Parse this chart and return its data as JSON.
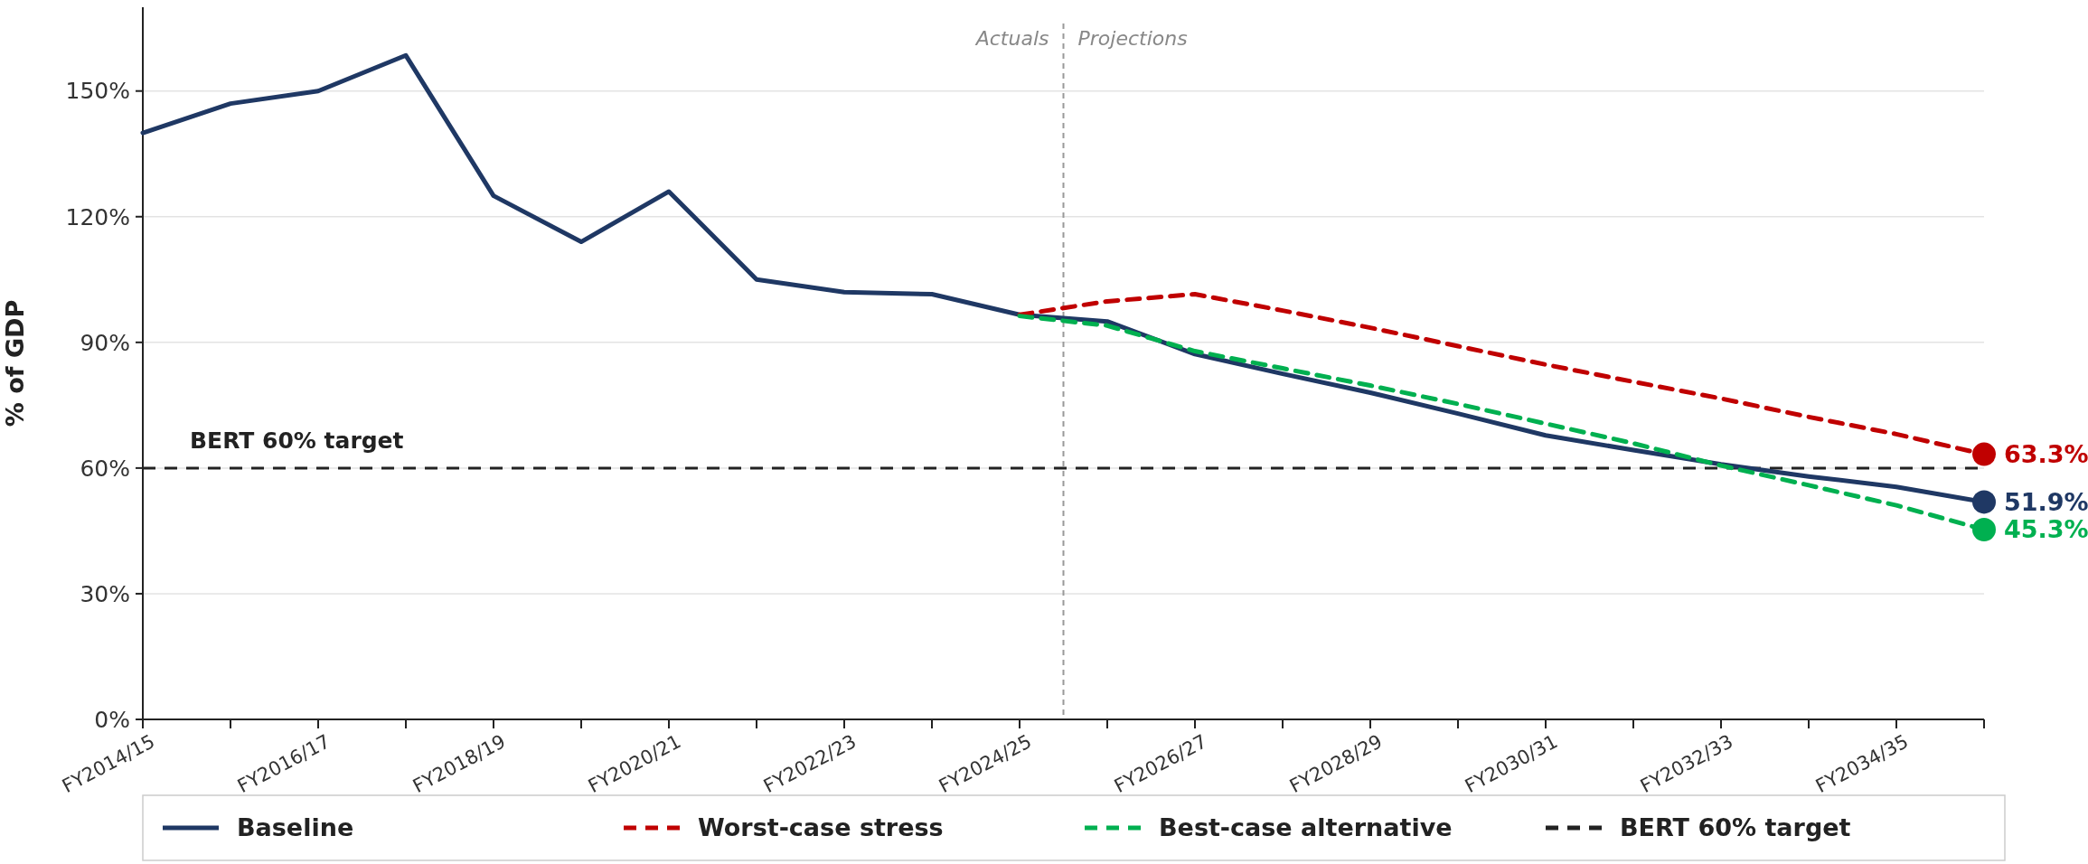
{
  "chart_data": {
    "type": "line",
    "ylabel": "% of GDP",
    "categories": [
      "FY2014/15",
      null,
      "FY2016/17",
      null,
      "FY2018/19",
      null,
      "FY2020/21",
      null,
      "FY2022/23",
      null,
      "FY2024/25",
      null,
      "FY2026/27",
      null,
      "FY2028/29",
      null,
      "FY2030/31",
      null,
      "FY2032/33",
      null,
      "FY2034/35",
      null
    ],
    "ylim": [
      0,
      170
    ],
    "yticks": [
      {
        "value": 0,
        "label": "0%"
      },
      {
        "value": 30,
        "label": "30%"
      },
      {
        "value": 60,
        "label": "60%"
      },
      {
        "value": 90,
        "label": "90%"
      },
      {
        "value": 120,
        "label": "120%"
      },
      {
        "value": 150,
        "label": "150%"
      }
    ],
    "grid": "y",
    "legend": "bottom",
    "series": [
      {
        "name": "Baseline",
        "color": "#1f3864",
        "line_style": "solid",
        "values": [
          140,
          147,
          150,
          158.5,
          125,
          114,
          126,
          105,
          102,
          101.5,
          96.6,
          95,
          87.2,
          82.5,
          78,
          73,
          67.8,
          64.3,
          60.9,
          58,
          55.5,
          51.9
        ],
        "value_labels": [
          null,
          null,
          null,
          null,
          null,
          null,
          null,
          null,
          null,
          null,
          null,
          null,
          null,
          null,
          null,
          null,
          null,
          null,
          null,
          null,
          null,
          "51.9%"
        ]
      },
      {
        "name": "Worst-case stress",
        "color": "#c00000",
        "line_style": "dashed",
        "values": [
          null,
          null,
          null,
          null,
          null,
          null,
          null,
          null,
          null,
          null,
          96.6,
          99.8,
          101.5,
          97.6,
          93.5,
          89.1,
          84.7,
          80.6,
          76.6,
          72.2,
          68.1,
          63.3
        ],
        "value_labels": [
          null,
          null,
          null,
          null,
          null,
          null,
          null,
          null,
          null,
          null,
          null,
          null,
          null,
          null,
          null,
          null,
          null,
          null,
          null,
          null,
          null,
          "63.3%"
        ]
      },
      {
        "name": "Best-case alternative",
        "color": "#00b050",
        "line_style": "dashed",
        "values": [
          null,
          null,
          null,
          null,
          null,
          null,
          null,
          null,
          null,
          null,
          96.3,
          94,
          87.9,
          83.8,
          79.7,
          75.3,
          70.6,
          65.9,
          60.6,
          55.9,
          51.1,
          45.3
        ],
        "value_labels": [
          null,
          null,
          null,
          null,
          null,
          null,
          null,
          null,
          null,
          null,
          null,
          null,
          null,
          null,
          null,
          null,
          null,
          null,
          null,
          null,
          null,
          "45.3%"
        ]
      }
    ],
    "ref_lines": [
      {
        "axis": "y",
        "value": 60,
        "label": "BERT 60% target",
        "color": "#222222",
        "line_style": "dashed"
      }
    ],
    "annotations": [
      "Actuals",
      "Projections"
    ]
  }
}
